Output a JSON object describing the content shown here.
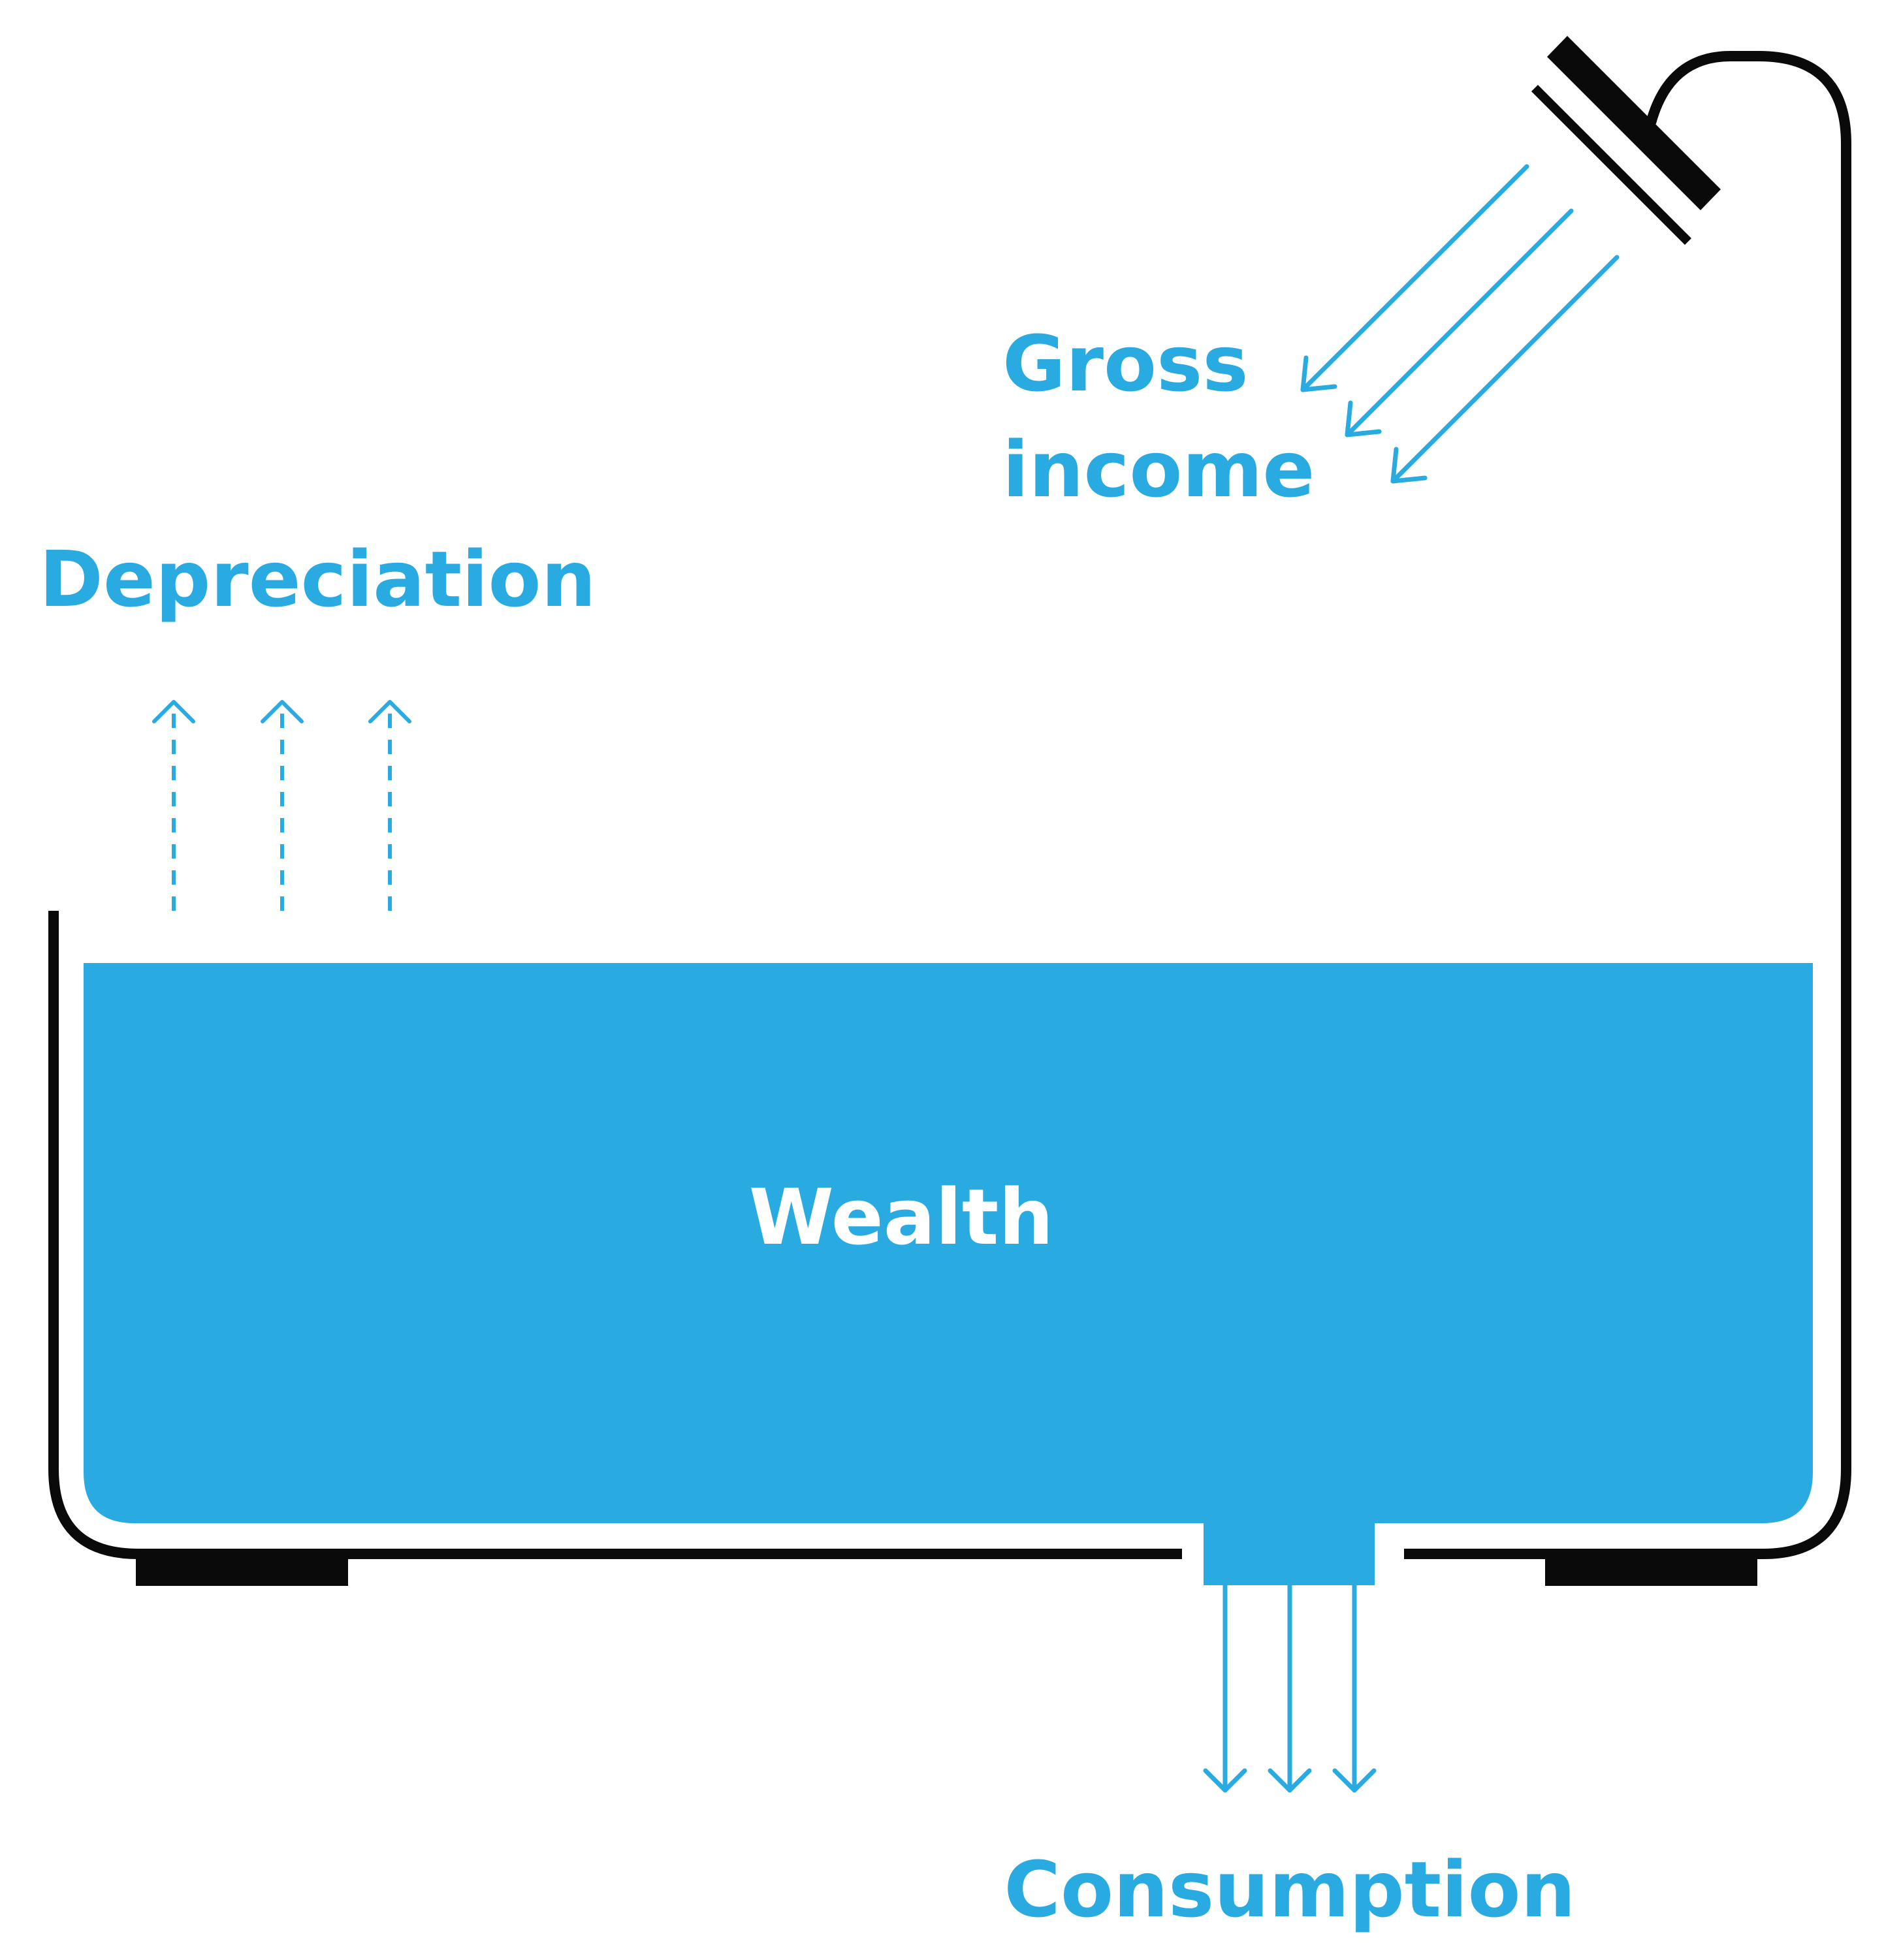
{
  "labels": {
    "gross_line1": "Gross",
    "gross_line2": "income",
    "depreciation": "Depreciation",
    "wealth": "Wealth",
    "consumption": "Consumption"
  },
  "colors": {
    "accent": "#29aae1",
    "outline": "#0a0a0a",
    "background": "#ffffff",
    "wealth_text": "#ffffff"
  },
  "icons": {
    "tub": "bathtub-outline-icon",
    "tap": "shower-head-icon",
    "feet": "tub-foot-icon",
    "inflow": "arrow-down-left-icon",
    "outflow_up": "dashed-arrow-up-icon",
    "outflow_down": "arrow-down-icon"
  }
}
